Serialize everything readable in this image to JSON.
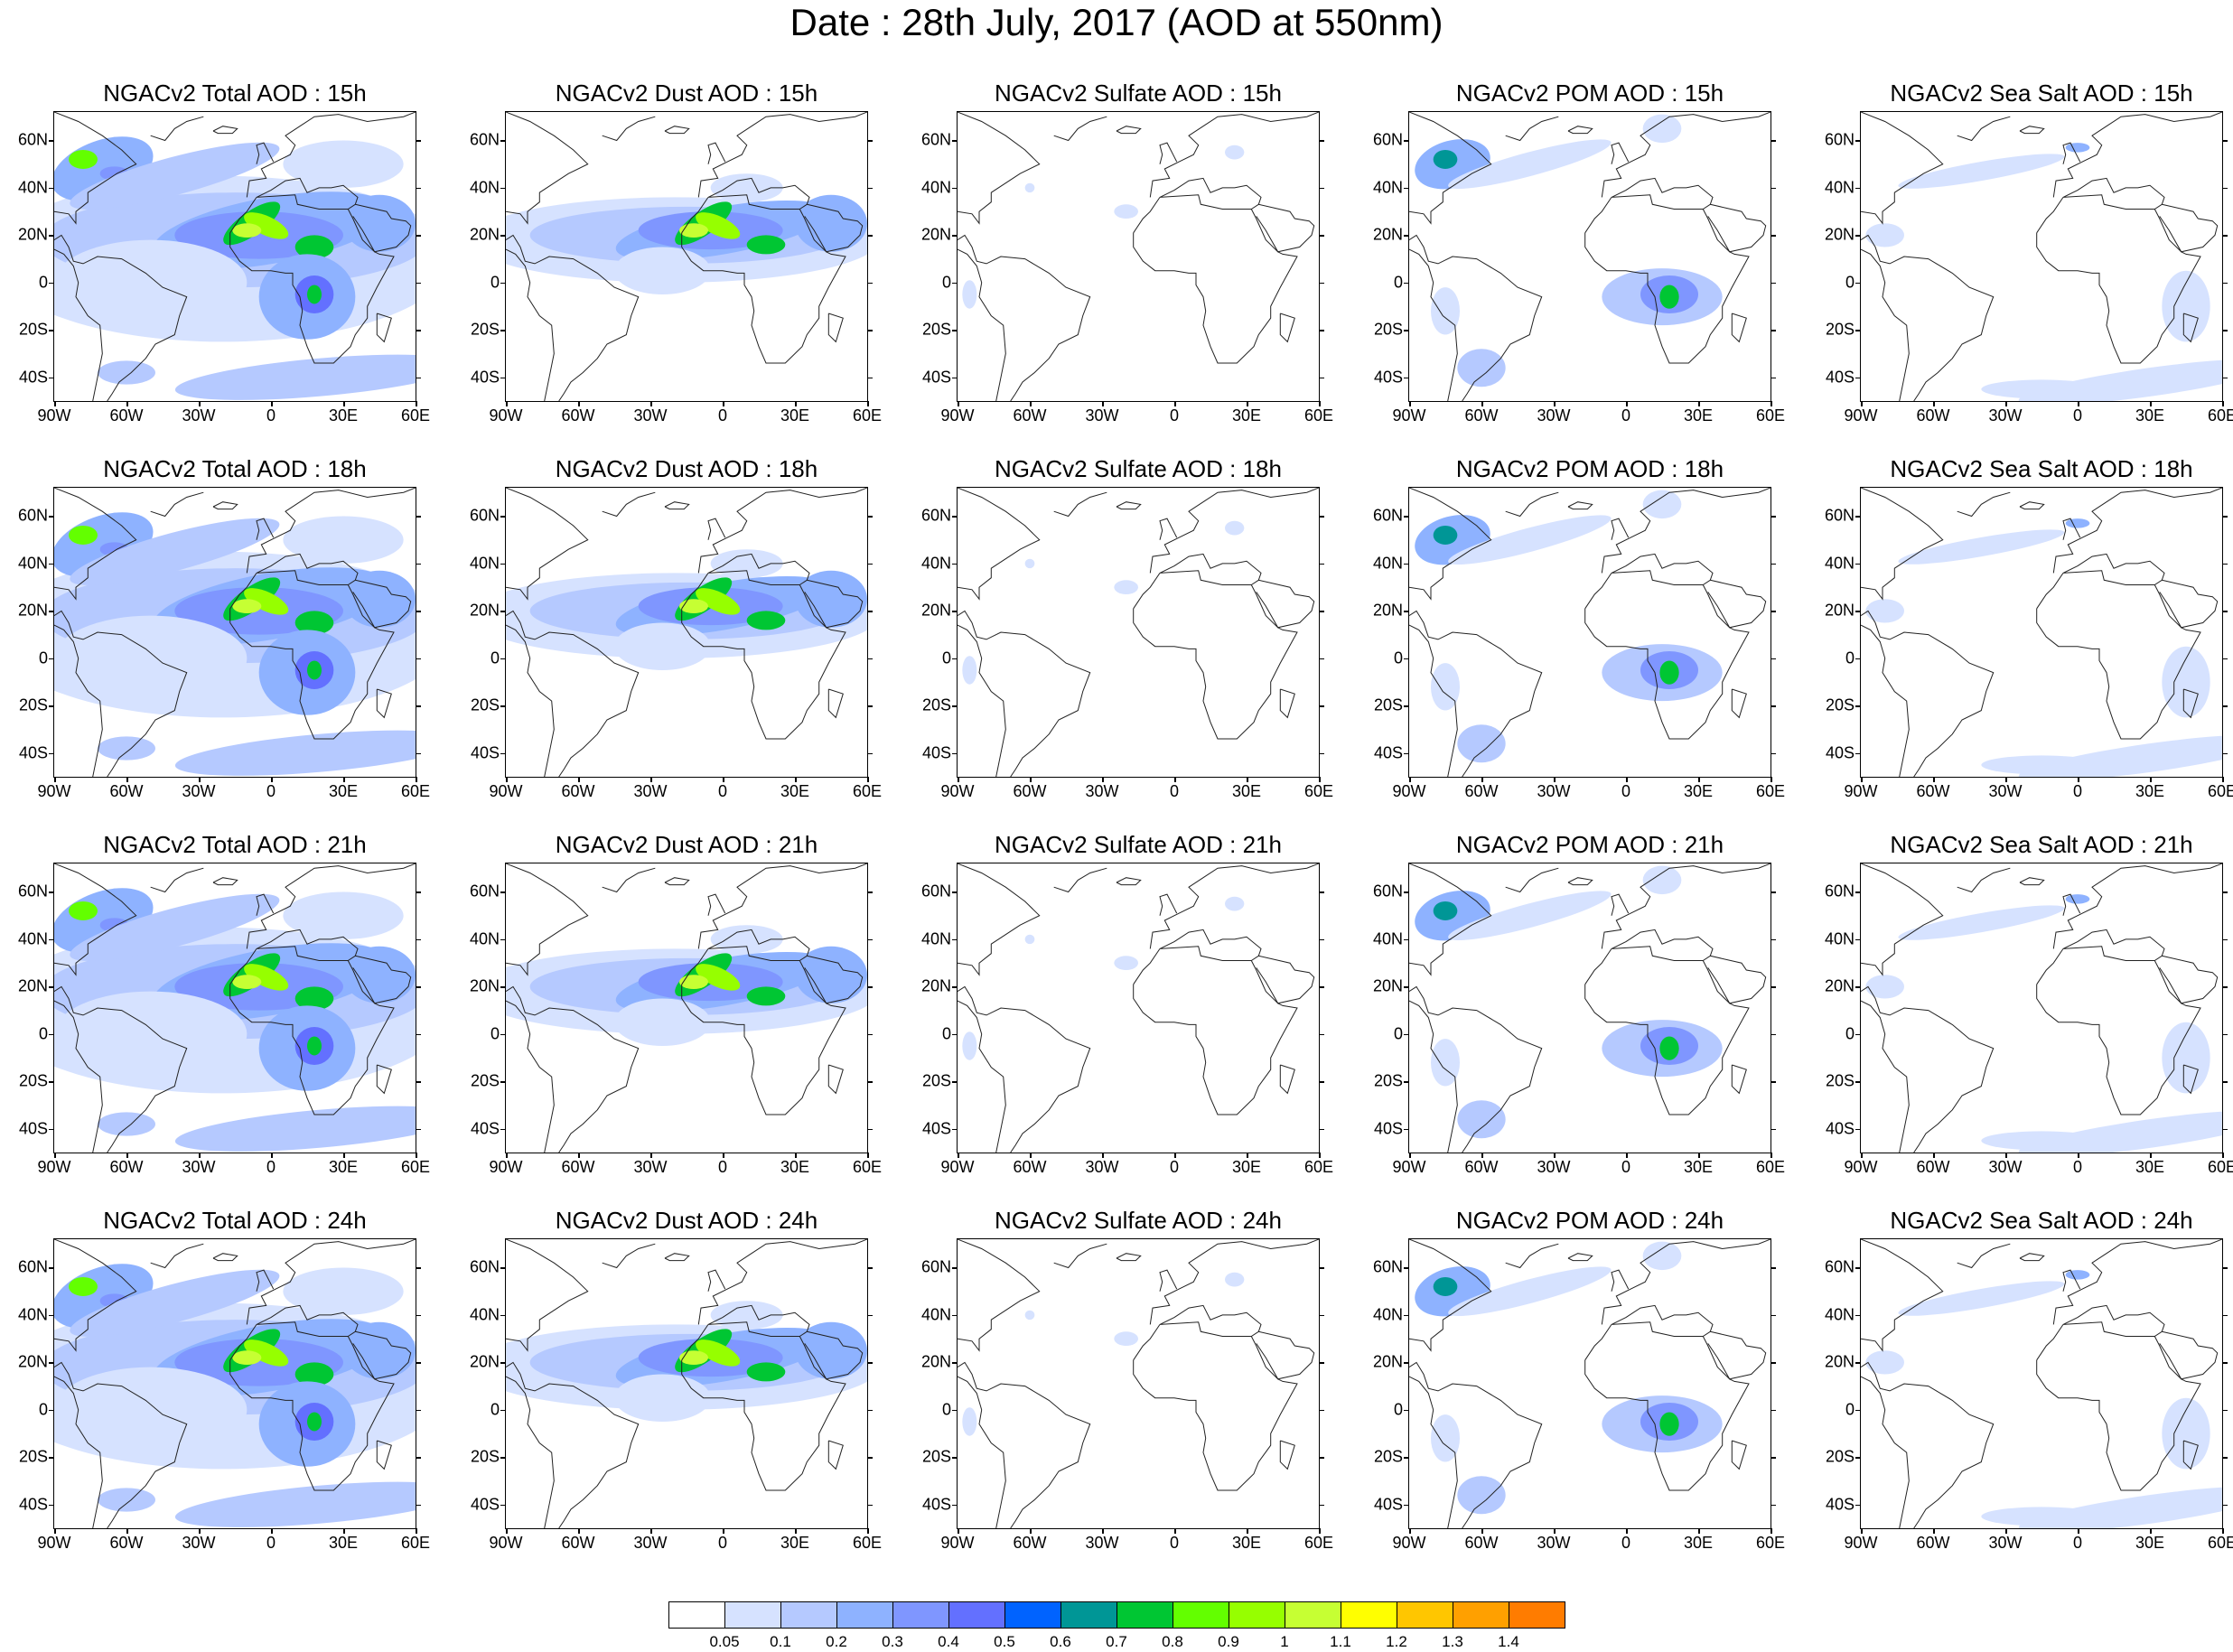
{
  "title": "Date : 28th July, 2017 (AOD at 550nm)",
  "axes": {
    "lat_labels": [
      "60N",
      "40N",
      "20N",
      "0",
      "20S",
      "40S"
    ],
    "lat_values": [
      60,
      40,
      20,
      0,
      -20,
      -40
    ],
    "lon_labels": [
      "90W",
      "60W",
      "30W",
      "0",
      "30E",
      "60E"
    ],
    "lon_values": [
      -90,
      -60,
      -30,
      0,
      30,
      60
    ],
    "lon_range": [
      -90,
      60
    ],
    "lat_range": [
      -50,
      72
    ]
  },
  "rows": [
    {
      "hour": "15h",
      "titles": [
        "NGACv2 Total AOD : 15h",
        "NGACv2 Dust AOD : 15h",
        "NGACv2 Sulfate AOD : 15h",
        "NGACv2 POM AOD : 15h",
        "NGACv2 Sea Salt AOD : 15h"
      ]
    },
    {
      "hour": "18h",
      "titles": [
        "NGACv2 Total AOD : 18h",
        "NGACv2 Dust AOD : 18h",
        "NGACv2 Sulfate AOD : 18h",
        "NGACv2 POM AOD : 18h",
        "NGACv2 Sea Salt AOD : 18h"
      ]
    },
    {
      "hour": "21h",
      "titles": [
        "NGACv2 Total AOD : 21h",
        "NGACv2 Dust AOD : 21h",
        "NGACv2 Sulfate AOD : 21h",
        "NGACv2 POM AOD : 21h",
        "NGACv2 Sea Salt AOD : 21h"
      ]
    },
    {
      "hour": "24h",
      "titles": [
        "NGACv2 Total AOD : 24h",
        "NGACv2 Dust AOD : 24h",
        "NGACv2 Sulfate AOD : 24h",
        "NGACv2 POM AOD : 24h",
        "NGACv2 Sea Salt  AOD : 24h"
      ]
    }
  ],
  "species": [
    "total",
    "dust",
    "sulfate",
    "pom",
    "seasalt"
  ],
  "colorbar": {
    "labels": [
      "0.05",
      "0.1",
      "0.2",
      "0.3",
      "0.4",
      "0.5",
      "0.6",
      "0.7",
      "0.8",
      "0.9",
      "1",
      "1.1",
      "1.2",
      "1.3",
      "1.4"
    ],
    "colors": [
      "#ffffff",
      "#d6e2ff",
      "#b5c9ff",
      "#8eb2ff",
      "#7f96ff",
      "#6370ff",
      "#0063ff",
      "#009696",
      "#00c633",
      "#63ff00",
      "#96ff00",
      "#c6ff33",
      "#ffff00",
      "#ffc600",
      "#ffa000",
      "#ff7c00",
      "#ff1900"
    ]
  }
}
